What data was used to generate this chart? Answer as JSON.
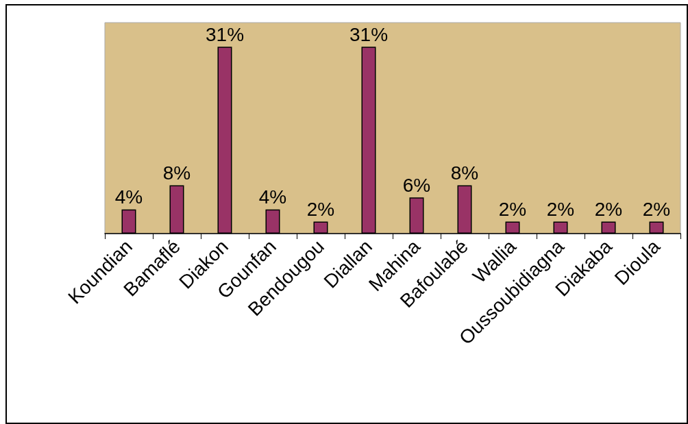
{
  "chart_data": {
    "type": "bar",
    "categories": [
      "Koundian",
      "Bamaflé",
      "Diakon",
      "Gounfan",
      "Bendougou",
      "Diallan",
      "Mahina",
      "Bafoulabé",
      "Wallia",
      "Oussoubidiagna",
      "Diakaba",
      "Dioula"
    ],
    "values": [
      4,
      8,
      31,
      4,
      2,
      31,
      6,
      8,
      2,
      2,
      2,
      2
    ],
    "value_labels": [
      "4%",
      "8%",
      "31%",
      "4%",
      "2%",
      "31%",
      "6%",
      "8%",
      "2%",
      "2%",
      "2%",
      "2%"
    ],
    "color": "#993366",
    "ylim": [
      0,
      35
    ],
    "tick_labels": "x",
    "grid": false
  }
}
